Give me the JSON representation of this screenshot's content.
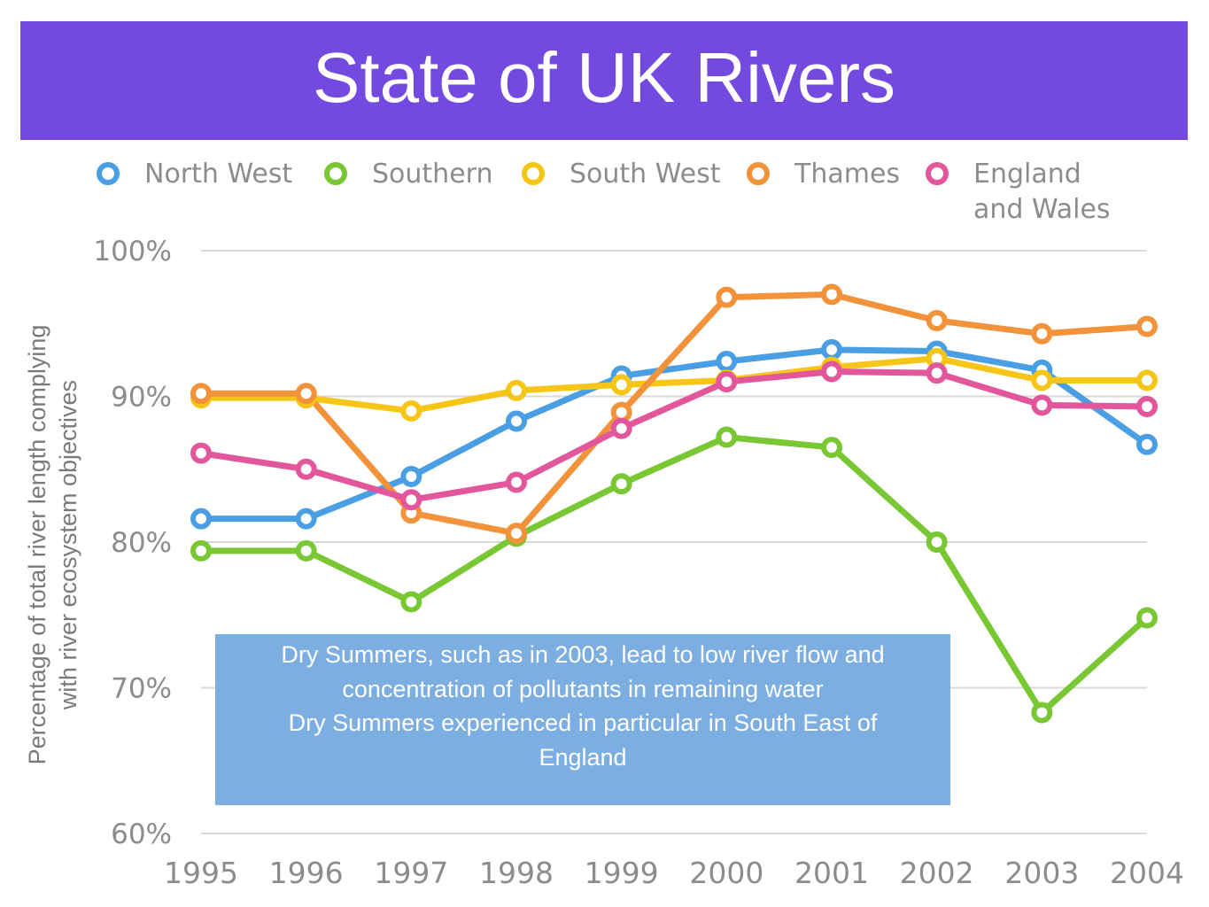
{
  "header": {
    "title": "State of UK Rivers",
    "background": "#7349e0"
  },
  "annotation": {
    "line1": "Dry Summers, such as in 2003, lead to low river flow and",
    "line2": "concentration of pollutants in remaining water",
    "line3": "Dry Summers experienced in particular in South East of",
    "line4": "England",
    "background": "#7daee2"
  },
  "chart_data": {
    "type": "line",
    "title": "",
    "xlabel": "",
    "ylabel_lines": [
      "Percentage of total river length complying",
      "with river ecosystem objectives"
    ],
    "x": [
      "1995",
      "1996",
      "1997",
      "1998",
      "1999",
      "2000",
      "2001",
      "2002",
      "2003",
      "2004"
    ],
    "ylim": [
      60,
      100
    ],
    "yticks": [
      60,
      70,
      80,
      90,
      100
    ],
    "ytick_labels": [
      "60%",
      "70%",
      "80%",
      "90%",
      "100%"
    ],
    "grid": true,
    "legend_position": "top",
    "series": [
      {
        "name": "North West",
        "color": "#4a9ee3",
        "values": [
          81.6,
          81.6,
          84.5,
          88.3,
          91.4,
          92.4,
          93.2,
          93.1,
          91.8,
          86.7
        ]
      },
      {
        "name": "Southern",
        "color": "#79c733",
        "values": [
          79.4,
          79.4,
          75.9,
          80.4,
          84.0,
          87.2,
          86.5,
          80.0,
          68.3,
          74.8
        ]
      },
      {
        "name": "South West",
        "color": "#f5c518",
        "values": [
          89.9,
          89.9,
          89.0,
          90.4,
          90.8,
          91.1,
          92.0,
          92.6,
          91.1,
          91.1
        ]
      },
      {
        "name": "Thames",
        "color": "#f2923a",
        "values": [
          90.2,
          90.2,
          82.0,
          80.6,
          88.9,
          96.8,
          97.0,
          95.2,
          94.3,
          94.8
        ]
      },
      {
        "name": "England and Wales",
        "name_lines": [
          "England",
          "and Wales"
        ],
        "color": "#e2569b",
        "values": [
          86.1,
          85.0,
          82.9,
          84.1,
          87.8,
          91.0,
          91.7,
          91.6,
          89.4,
          89.3
        ]
      }
    ]
  }
}
